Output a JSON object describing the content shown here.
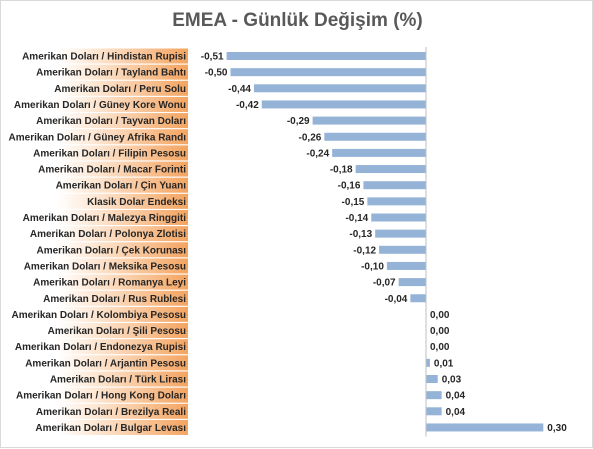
{
  "chart_data": {
    "type": "bar",
    "orientation": "horizontal",
    "title": "EMEA - Günlük Değişim (%)",
    "xlabel": "",
    "ylabel": "",
    "xlim": [
      -0.55,
      0.35
    ],
    "grid": false,
    "legend": "none",
    "colors": {
      "bar": "#95b3d7",
      "axis": "#bfbfbf",
      "label_gradient_start": "#ffffff",
      "label_gradient_end": "#f4a460"
    },
    "categories": [
      "Amerikan Doları / Hindistan Rupisi",
      "Amerikan Doları / Tayland Bahtı",
      "Amerikan Doları / Peru Solu",
      "Amerikan Doları / Güney Kore Wonu",
      "Amerikan Doları / Tayvan Doları",
      "Amerikan Doları / Güney Afrika Randı",
      "Amerikan Doları / Filipin Pesosu",
      "Amerikan Doları / Macar Forinti",
      "Amerikan Doları / Çin Yuanı",
      "Klasik Dolar Endeksi",
      "Amerikan Doları / Malezya Ringgiti",
      "Amerikan Doları / Polonya Zlotisi",
      "Amerikan Doları / Çek Korunası",
      "Amerikan Doları / Meksika Pesosu",
      "Amerikan Doları / Romanya Leyi",
      "Amerikan Doları / Rus Rublesi",
      "Amerikan Doları / Kolombiya Pesosu",
      "Amerikan Doları / Şili Pesosu",
      "Amerikan Doları / Endonezya Rupisi",
      "Amerikan Doları / Arjantin Pesosu",
      "Amerikan Doları / Türk Lirası",
      "Amerikan Doları / Hong Kong Doları",
      "Amerikan Doları / Brezilya Reali",
      "Amerikan Doları / Bulgar Levası"
    ],
    "values": [
      -0.51,
      -0.5,
      -0.44,
      -0.42,
      -0.29,
      -0.26,
      -0.24,
      -0.18,
      -0.16,
      -0.15,
      -0.14,
      -0.13,
      -0.12,
      -0.1,
      -0.07,
      -0.04,
      0.0,
      0.0,
      0.0,
      0.01,
      0.03,
      0.04,
      0.04,
      0.3
    ],
    "value_labels": [
      "-0,51",
      "-0,50",
      "-0,44",
      "-0,42",
      "-0,29",
      "-0,26",
      "-0,24",
      "-0,18",
      "-0,16",
      "-0,15",
      "-0,14",
      "-0,13",
      "-0,12",
      "-0,10",
      "-0,07",
      "-0,04",
      "0,00",
      "0,00",
      "0,00",
      "0,01",
      "0,03",
      "0,04",
      "0,04",
      "0,30"
    ]
  }
}
